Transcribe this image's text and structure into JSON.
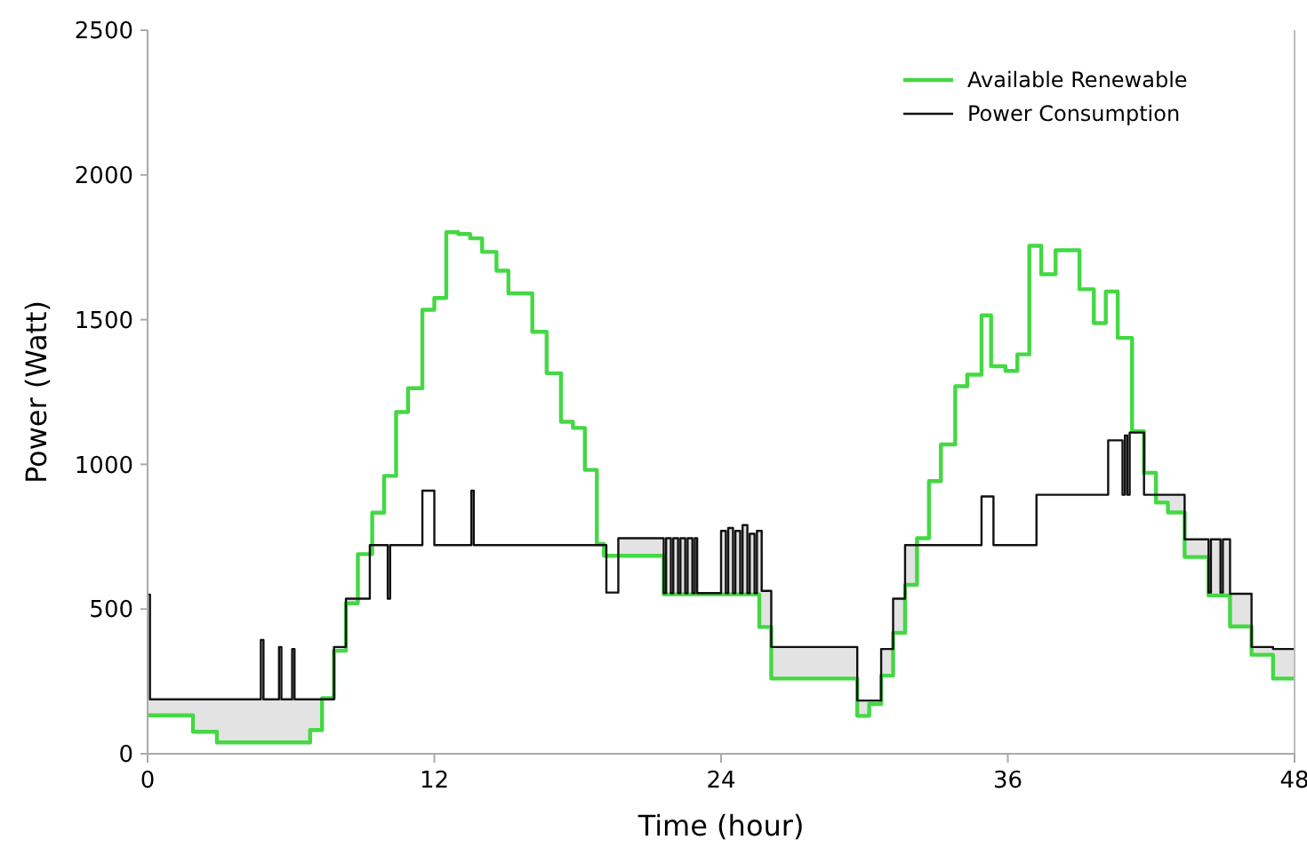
{
  "chart_data": {
    "type": "step",
    "xlabel": "Time (hour)",
    "ylabel": "Power (Watt)",
    "xlim": [
      0,
      48
    ],
    "xticks": [
      0,
      12,
      24,
      36,
      48
    ],
    "ylim": [
      0,
      2500
    ],
    "yticks": [
      0,
      500,
      1000,
      1500,
      2000,
      2500
    ],
    "grid": false,
    "legend": "top right",
    "line_style": "solid",
    "marker": "none",
    "series": [
      {
        "name": "Available Renewable",
        "color": "#44d844",
        "x": [
          0,
          1.9,
          2.9,
          6.8,
          7.3,
          7.8,
          8.3,
          8.8,
          9.4,
          9.9,
          10.4,
          10.9,
          11.5,
          12.0,
          12.5,
          13.0,
          13.5,
          14.0,
          14.6,
          15.1,
          16.1,
          16.7,
          17.3,
          17.8,
          18.3,
          18.8,
          19.1,
          21.6,
          25.6,
          26.1,
          29.7,
          30.2,
          30.7,
          31.2,
          31.7,
          32.2,
          32.7,
          33.2,
          33.8,
          34.3,
          34.9,
          35.3,
          35.9,
          36.4,
          36.9,
          37.4,
          38.0,
          38.5,
          39.0,
          39.6,
          40.1,
          40.6,
          41.2,
          41.7,
          42.2,
          42.7,
          43.4,
          44.4,
          45.3,
          46.2,
          47.1,
          48
        ],
        "values": [
          133,
          76,
          39,
          82,
          192,
          356,
          520,
          690,
          833,
          960,
          1181,
          1263,
          1534,
          1575,
          1802,
          1796,
          1781,
          1734,
          1669,
          1591,
          1458,
          1315,
          1147,
          1126,
          981,
          725,
          684,
          551,
          438,
          260,
          131,
          172,
          270,
          418,
          584,
          745,
          942,
          1069,
          1270,
          1310,
          1515,
          1339,
          1323,
          1380,
          1755,
          1657,
          1740,
          1740,
          1605,
          1488,
          1597,
          1437,
          1114,
          971,
          868,
          834,
          680,
          547,
          440,
          342,
          260,
          260
        ]
      },
      {
        "name": "Power Consumption",
        "color": "#111111",
        "x": [
          0,
          0.1,
          4.74,
          4.85,
          5.5,
          5.6,
          6.05,
          6.15,
          7.8,
          8.3,
          9.3,
          10.05,
          10.15,
          11.5,
          12.0,
          13.55,
          13.65,
          19.2,
          19.7,
          21.6,
          21.7,
          21.9,
          22.0,
          22.2,
          22.3,
          22.5,
          22.6,
          22.8,
          22.9,
          23.0,
          24.0,
          24.2,
          24.3,
          24.5,
          24.6,
          24.8,
          24.9,
          25.1,
          25.2,
          25.4,
          25.5,
          25.7,
          26.1,
          29.7,
          30.7,
          31.2,
          31.7,
          34.9,
          35.4,
          37.2,
          40.2,
          40.8,
          40.9,
          41.0,
          41.1,
          41.7,
          43.4,
          44.4,
          44.5,
          44.9,
          45.0,
          45.3,
          46.2,
          47.1,
          48
        ],
        "values": [
          550,
          188,
          393,
          188,
          369,
          188,
          362,
          188,
          369,
          536,
          721,
          536,
          721,
          909,
          721,
          909,
          721,
          557,
          745,
          555,
          745,
          555,
          745,
          555,
          745,
          555,
          745,
          555,
          745,
          555,
          770,
          555,
          780,
          555,
          770,
          555,
          790,
          555,
          760,
          555,
          770,
          563,
          369,
          184,
          362,
          536,
          721,
          889,
          721,
          895,
          1083,
          895,
          1100,
          895,
          1110,
          895,
          741,
          557,
          741,
          557,
          741,
          553,
          369,
          362,
          362
        ]
      }
    ]
  }
}
